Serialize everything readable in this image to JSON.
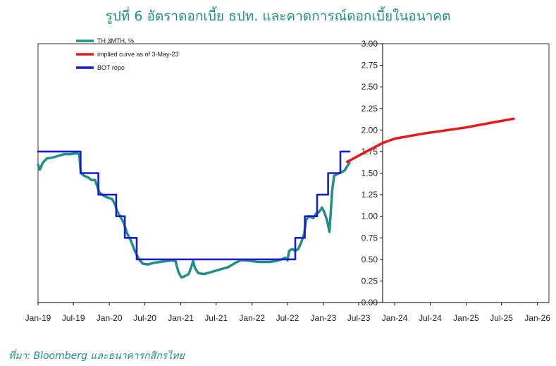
{
  "title": "รูปที่ 6 อัตราดอกเบี้ย ธปท. และคาดการณ์ดอกเบี้ยในอนาคต",
  "source": "ที่มา: Bloomberg และธนาคารกสิกรไทย",
  "chart_data": {
    "type": "line",
    "x_ticks": [
      "Jan-19",
      "Jul-19",
      "Jan-20",
      "Jul-20",
      "Jan-21",
      "Jul-21",
      "Jan-22",
      "Jul-22",
      "Jan-23",
      "Jul-23",
      "Jan-24",
      "Jul-24",
      "Jan-25",
      "Jul-25",
      "Jan-26"
    ],
    "y_ticks": [
      "3.00",
      "2.75",
      "2.50",
      "2.25",
      "2.00",
      "1.75",
      "1.50",
      "1.25",
      "1.00",
      "0.75",
      "0.50",
      "0.25",
      "0.00"
    ],
    "ylim": [
      0,
      3
    ],
    "xlim": [
      "2019-01-01",
      "2026-03-01"
    ],
    "y_axis_position": "right",
    "grid": false,
    "legend_position": "top-left",
    "series": [
      {
        "name": "TH 3MTH, %",
        "color": "#1f8f87",
        "points": [
          [
            "2019-01-01",
            1.6
          ],
          [
            "2019-01-10",
            1.54
          ],
          [
            "2019-01-25",
            1.62
          ],
          [
            "2019-02-15",
            1.67
          ],
          [
            "2019-03-15",
            1.68
          ],
          [
            "2019-04-15",
            1.7
          ],
          [
            "2019-05-15",
            1.72
          ],
          [
            "2019-06-15",
            1.72
          ],
          [
            "2019-07-15",
            1.73
          ],
          [
            "2019-07-31",
            1.72
          ],
          [
            "2019-08-08",
            1.5
          ],
          [
            "2019-08-25",
            1.47
          ],
          [
            "2019-09-15",
            1.45
          ],
          [
            "2019-10-01",
            1.42
          ],
          [
            "2019-10-20",
            1.42
          ],
          [
            "2019-11-10",
            1.28
          ],
          [
            "2019-12-01",
            1.24
          ],
          [
            "2019-12-20",
            1.22
          ],
          [
            "2020-01-15",
            1.2
          ],
          [
            "2020-02-01",
            1.13
          ],
          [
            "2020-02-10",
            1.06
          ],
          [
            "2020-03-01",
            0.98
          ],
          [
            "2020-03-15",
            0.92
          ],
          [
            "2020-04-01",
            0.8
          ],
          [
            "2020-04-20",
            0.72
          ],
          [
            "2020-05-10",
            0.6
          ],
          [
            "2020-06-01",
            0.5
          ],
          [
            "2020-06-20",
            0.45
          ],
          [
            "2020-07-15",
            0.44
          ],
          [
            "2020-08-15",
            0.46
          ],
          [
            "2020-09-15",
            0.47
          ],
          [
            "2020-10-15",
            0.48
          ],
          [
            "2020-11-15",
            0.49
          ],
          [
            "2020-12-05",
            0.48
          ],
          [
            "2020-12-20",
            0.35
          ],
          [
            "2021-01-05",
            0.29
          ],
          [
            "2021-01-25",
            0.31
          ],
          [
            "2021-02-10",
            0.33
          ],
          [
            "2021-02-25",
            0.42
          ],
          [
            "2021-03-05",
            0.48
          ],
          [
            "2021-03-15",
            0.4
          ],
          [
            "2021-04-01",
            0.34
          ],
          [
            "2021-05-01",
            0.33
          ],
          [
            "2021-06-01",
            0.35
          ],
          [
            "2021-07-01",
            0.37
          ],
          [
            "2021-08-01",
            0.39
          ],
          [
            "2021-09-01",
            0.41
          ],
          [
            "2021-10-01",
            0.45
          ],
          [
            "2021-11-01",
            0.49
          ],
          [
            "2021-12-01",
            0.49
          ],
          [
            "2022-01-01",
            0.48
          ],
          [
            "2022-02-01",
            0.47
          ],
          [
            "2022-03-01",
            0.47
          ],
          [
            "2022-04-01",
            0.47
          ],
          [
            "2022-05-01",
            0.48
          ],
          [
            "2022-06-01",
            0.5
          ],
          [
            "2022-06-20",
            0.52
          ],
          [
            "2022-07-01",
            0.49
          ],
          [
            "2022-07-10",
            0.6
          ],
          [
            "2022-07-25",
            0.62
          ],
          [
            "2022-08-10",
            0.6
          ],
          [
            "2022-08-25",
            0.62
          ],
          [
            "2022-09-10",
            0.7
          ],
          [
            "2022-09-25",
            0.8
          ],
          [
            "2022-10-05",
            0.96
          ],
          [
            "2022-10-20",
            1.0
          ],
          [
            "2022-11-10",
            0.98
          ],
          [
            "2022-11-25",
            1.03
          ],
          [
            "2022-12-10",
            1.05
          ],
          [
            "2022-12-25",
            1.1
          ],
          [
            "2023-01-05",
            1.05
          ],
          [
            "2023-01-20",
            0.95
          ],
          [
            "2023-02-01",
            0.82
          ],
          [
            "2023-02-15",
            1.3
          ],
          [
            "2023-02-25",
            1.47
          ],
          [
            "2023-03-15",
            1.49
          ],
          [
            "2023-04-01",
            1.51
          ],
          [
            "2023-04-20",
            1.53
          ],
          [
            "2023-05-03",
            1.58
          ],
          [
            "2023-05-15",
            1.62
          ]
        ]
      },
      {
        "name": "implied curve as of  3-May-23",
        "color": "#e31b1b",
        "points": [
          [
            "2023-05-03",
            1.63
          ],
          [
            "2023-08-01",
            1.74
          ],
          [
            "2023-11-01",
            1.85
          ],
          [
            "2024-01-01",
            1.9
          ],
          [
            "2024-06-01",
            1.96
          ],
          [
            "2025-01-01",
            2.03
          ],
          [
            "2025-05-01",
            2.08
          ],
          [
            "2025-09-01",
            2.13
          ]
        ]
      },
      {
        "name": "BOT repo",
        "color": "#1a1ad1",
        "step": true,
        "points": [
          [
            "2019-01-01",
            1.75
          ],
          [
            "2019-08-07",
            1.5
          ],
          [
            "2019-11-06",
            1.25
          ],
          [
            "2020-02-05",
            1.0
          ],
          [
            "2020-03-20",
            0.75
          ],
          [
            "2020-05-20",
            0.5
          ],
          [
            "2022-08-10",
            0.75
          ],
          [
            "2022-09-28",
            1.0
          ],
          [
            "2022-11-30",
            1.25
          ],
          [
            "2023-01-25",
            1.5
          ],
          [
            "2023-03-29",
            1.75
          ],
          [
            "2023-05-15",
            1.75
          ]
        ]
      }
    ]
  }
}
